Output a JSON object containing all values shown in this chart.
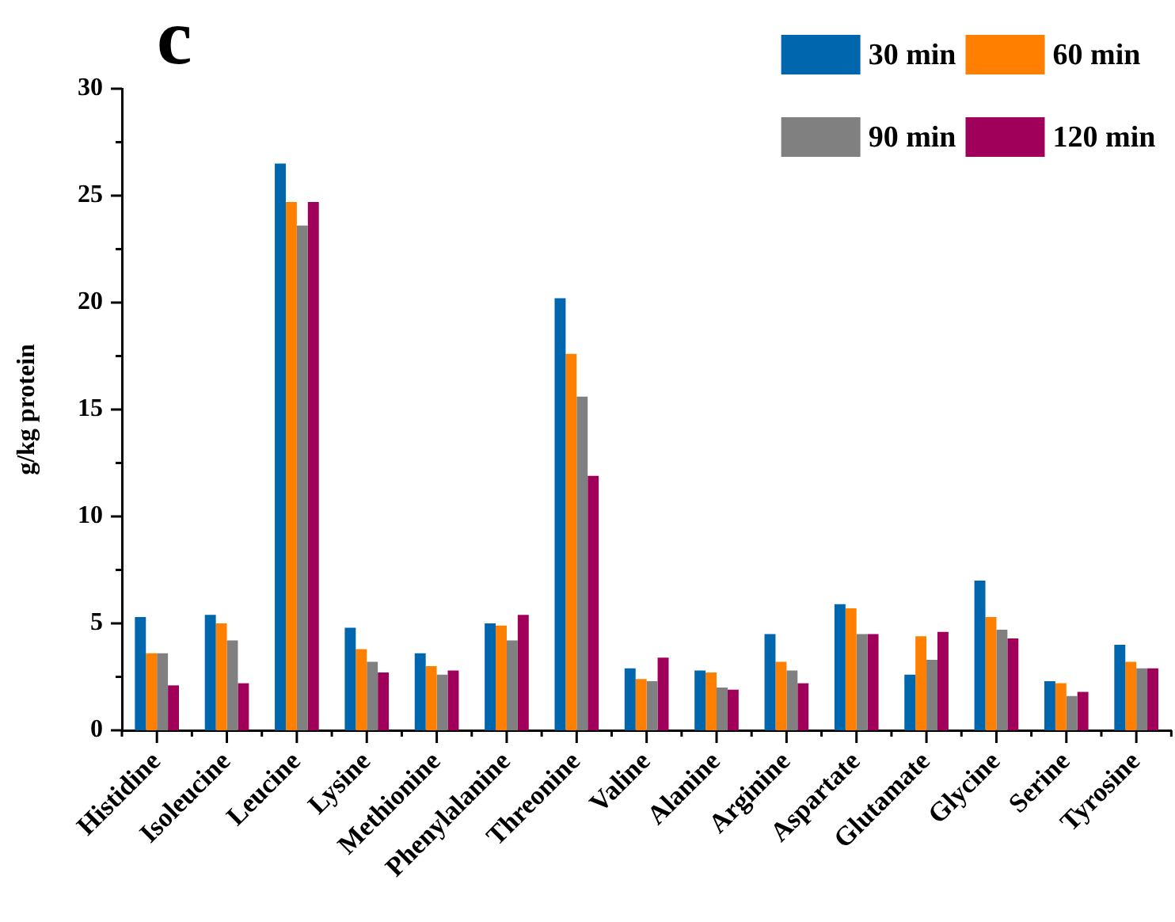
{
  "chart_data": {
    "type": "bar",
    "title": "c",
    "ylabel": "g/kg protein",
    "categories": [
      "Histidine",
      "Isoleucine",
      "Leucine",
      "Lysine",
      "Methionine",
      "Phenylalanine",
      "Threonine",
      "Valine",
      "Alanine",
      "Arginine",
      "Aspartate",
      "Glutamate",
      "Glycine",
      "Serine",
      "Tyrosine"
    ],
    "series": [
      {
        "name": "30 min",
        "color": "#0066ad",
        "values": [
          5.3,
          5.4,
          26.5,
          4.8,
          3.6,
          5.0,
          20.2,
          2.9,
          2.8,
          4.5,
          5.9,
          2.6,
          7.0,
          2.3,
          4.0
        ]
      },
      {
        "name": "60 min",
        "color": "#ff8000",
        "values": [
          3.6,
          5.0,
          24.7,
          3.8,
          3.0,
          4.9,
          17.6,
          2.4,
          2.7,
          3.2,
          5.7,
          4.4,
          5.3,
          2.2,
          3.2
        ]
      },
      {
        "name": "90 min",
        "color": "#808080",
        "values": [
          3.6,
          4.2,
          23.6,
          3.2,
          2.6,
          4.2,
          15.6,
          2.3,
          2.0,
          2.8,
          4.5,
          3.3,
          4.7,
          1.6,
          2.9
        ]
      },
      {
        "name": "120 min",
        "color": "#a1005a",
        "values": [
          2.1,
          2.2,
          24.7,
          2.7,
          2.8,
          5.4,
          11.9,
          3.4,
          1.9,
          2.2,
          4.5,
          4.6,
          4.3,
          1.8,
          2.9
        ]
      }
    ],
    "ylim": [
      0,
      30
    ],
    "yticks": [
      0,
      {
        "value": 2.5,
        "label": null
      },
      5,
      {
        "value": 7.5,
        "label": null
      },
      10,
      {
        "value": 12.5,
        "label": null
      },
      15,
      {
        "value": 17.5,
        "label": null
      },
      20,
      {
        "value": 22.5,
        "label": null
      },
      25,
      {
        "value": 27.5,
        "label": null
      },
      30
    ],
    "legend": "top right"
  }
}
